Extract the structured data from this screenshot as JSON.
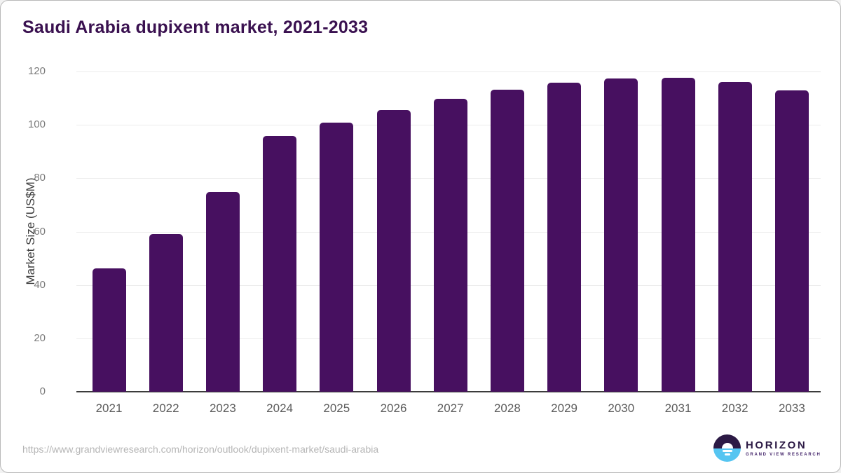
{
  "title": "Saudi Arabia dupixent market, 2021-2033",
  "footer": {
    "url": "https://www.grandviewresearch.com/horizon/outlook/dupixent-market/saudi-arabia"
  },
  "logo": {
    "name": "HORIZON",
    "subtitle": "GRAND VIEW RESEARCH",
    "icon": "horizon-sunrise-logo"
  },
  "colors": {
    "bar": "#471060",
    "title": "#3a1150",
    "gridline": "#ececec",
    "axis_line": "#3c3c3c",
    "y_tick_label": "#7b7b7b",
    "x_label": "#5c5c5c",
    "url_text": "#b5b5b5",
    "logo_purple": "#2c1a45",
    "logo_blue": "#56c5f1"
  },
  "chart_data": {
    "type": "bar",
    "title": "Saudi Arabia dupixent market, 2021-2033",
    "categories": [
      "2021",
      "2022",
      "2023",
      "2024",
      "2025",
      "2026",
      "2027",
      "2028",
      "2029",
      "2030",
      "2031",
      "2032",
      "2033"
    ],
    "values": [
      46.3,
      59.0,
      74.8,
      95.8,
      100.9,
      105.5,
      109.8,
      113.1,
      115.7,
      117.3,
      117.6,
      116.0,
      112.9
    ],
    "xlabel": "",
    "ylabel": "Market Size (US$M)",
    "ylim": [
      0,
      120
    ],
    "yticks": [
      0,
      20,
      40,
      60,
      80,
      100,
      120
    ],
    "grid": true,
    "legend": "none"
  }
}
